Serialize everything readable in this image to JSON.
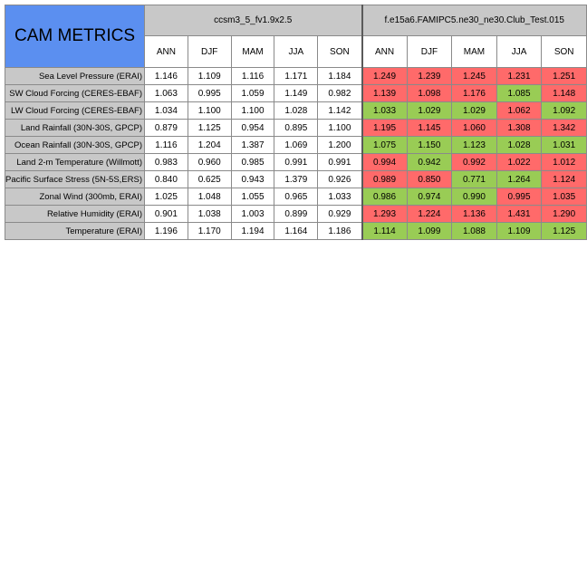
{
  "title": "CAM METRICS",
  "experiments": [
    "ccsm3_5_fv1.9x2.5",
    "f.e15a6.FAMIPC5.ne30_ne30.Club_Test.015"
  ],
  "seasons": [
    "ANN",
    "DJF",
    "MAM",
    "JJA",
    "SON"
  ],
  "colors": {
    "worse": "#ff6a6a",
    "better": "#99cc55",
    "header": "#c8c8c8",
    "title_bg": "#5b8ff0"
  },
  "chart_data": {
    "type": "table",
    "columns": [
      "ANN",
      "DJF",
      "MAM",
      "JJA",
      "SON"
    ],
    "rows": [
      {
        "label": "Sea Level Pressure (ERAI)",
        "base": [
          "1.146",
          "1.109",
          "1.116",
          "1.171",
          "1.184"
        ],
        "test": [
          "1.249",
          "1.239",
          "1.245",
          "1.231",
          "1.251"
        ],
        "test_status": [
          "worse",
          "worse",
          "worse",
          "worse",
          "worse"
        ]
      },
      {
        "label": "SW Cloud Forcing (CERES-EBAF)",
        "base": [
          "1.063",
          "0.995",
          "1.059",
          "1.149",
          "0.982"
        ],
        "test": [
          "1.139",
          "1.098",
          "1.176",
          "1.085",
          "1.148"
        ],
        "test_status": [
          "worse",
          "worse",
          "worse",
          "better",
          "worse"
        ]
      },
      {
        "label": "LW Cloud Forcing (CERES-EBAF)",
        "base": [
          "1.034",
          "1.100",
          "1.100",
          "1.028",
          "1.142"
        ],
        "test": [
          "1.033",
          "1.029",
          "1.029",
          "1.062",
          "1.092"
        ],
        "test_status": [
          "better",
          "better",
          "better",
          "worse",
          "better"
        ]
      },
      {
        "label": "Land Rainfall (30N-30S, GPCP)",
        "base": [
          "0.879",
          "1.125",
          "0.954",
          "0.895",
          "1.100"
        ],
        "test": [
          "1.195",
          "1.145",
          "1.060",
          "1.308",
          "1.342"
        ],
        "test_status": [
          "worse",
          "worse",
          "worse",
          "worse",
          "worse"
        ]
      },
      {
        "label": "Ocean Rainfall (30N-30S, GPCP)",
        "base": [
          "1.116",
          "1.204",
          "1.387",
          "1.069",
          "1.200"
        ],
        "test": [
          "1.075",
          "1.150",
          "1.123",
          "1.028",
          "1.031"
        ],
        "test_status": [
          "better",
          "better",
          "better",
          "better",
          "better"
        ]
      },
      {
        "label": "Land 2-m Temperature (Willmott)",
        "base": [
          "0.983",
          "0.960",
          "0.985",
          "0.991",
          "0.991"
        ],
        "test": [
          "0.994",
          "0.942",
          "0.992",
          "1.022",
          "1.012"
        ],
        "test_status": [
          "worse",
          "better",
          "worse",
          "worse",
          "worse"
        ]
      },
      {
        "label": "Pacific Surface Stress (5N-5S,ERS)",
        "base": [
          "0.840",
          "0.625",
          "0.943",
          "1.379",
          "0.926"
        ],
        "test": [
          "0.989",
          "0.850",
          "0.771",
          "1.264",
          "1.124"
        ],
        "test_status": [
          "worse",
          "worse",
          "better",
          "better",
          "worse"
        ]
      },
      {
        "label": "Zonal Wind (300mb, ERAI)",
        "base": [
          "1.025",
          "1.048",
          "1.055",
          "0.965",
          "1.033"
        ],
        "test": [
          "0.986",
          "0.974",
          "0.990",
          "0.995",
          "1.035"
        ],
        "test_status": [
          "better",
          "better",
          "better",
          "worse",
          "worse"
        ]
      },
      {
        "label": "Relative Humidity (ERAI)",
        "base": [
          "0.901",
          "1.038",
          "1.003",
          "0.899",
          "0.929"
        ],
        "test": [
          "1.293",
          "1.224",
          "1.136",
          "1.431",
          "1.290"
        ],
        "test_status": [
          "worse",
          "worse",
          "worse",
          "worse",
          "worse"
        ]
      },
      {
        "label": "Temperature (ERAI)",
        "base": [
          "1.196",
          "1.170",
          "1.194",
          "1.164",
          "1.186"
        ],
        "test": [
          "1.114",
          "1.099",
          "1.088",
          "1.109",
          "1.125"
        ],
        "test_status": [
          "better",
          "better",
          "better",
          "better",
          "better"
        ]
      }
    ]
  }
}
